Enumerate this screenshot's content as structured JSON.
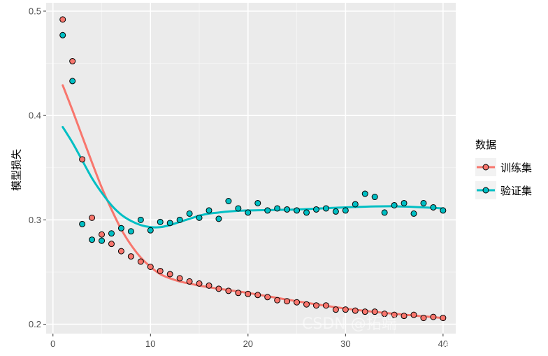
{
  "chart_data": {
    "type": "scatter",
    "title": "",
    "xlabel": "",
    "ylabel": "模型损失",
    "xlim": [
      -0.7,
      41.3
    ],
    "ylim": [
      0.191,
      0.508
    ],
    "xticks": [
      0,
      10,
      20,
      30,
      40
    ],
    "yticks": [
      0.2,
      0.3,
      0.4,
      0.5
    ],
    "x_tick_labels": [
      "0",
      "10",
      "20",
      "30",
      "40"
    ],
    "y_tick_labels": [
      "0.2",
      "0.3",
      "0.4",
      "0.5"
    ],
    "grid": true,
    "legend_title": "数据",
    "legend_position": "right",
    "series": [
      {
        "name": "训练集",
        "color": "#F8766D",
        "x": [
          1,
          2,
          3,
          4,
          5,
          6,
          7,
          8,
          9,
          10,
          11,
          12,
          13,
          14,
          15,
          16,
          17,
          18,
          19,
          20,
          21,
          22,
          23,
          24,
          25,
          26,
          27,
          28,
          29,
          30,
          31,
          32,
          33,
          34,
          35,
          36,
          37,
          38,
          39,
          40
        ],
        "values": [
          0.492,
          0.452,
          0.358,
          0.302,
          0.286,
          0.277,
          0.27,
          0.265,
          0.26,
          0.255,
          0.251,
          0.248,
          0.244,
          0.241,
          0.239,
          0.237,
          0.234,
          0.232,
          0.23,
          0.229,
          0.228,
          0.226,
          0.223,
          0.222,
          0.221,
          0.219,
          0.218,
          0.218,
          0.214,
          0.214,
          0.213,
          0.212,
          0.212,
          0.21,
          0.209,
          0.208,
          0.209,
          0.206,
          0.207,
          0.206
        ],
        "smooth": [
          [
            1,
            0.429
          ],
          [
            2,
            0.405
          ],
          [
            3,
            0.38
          ],
          [
            4,
            0.355
          ],
          [
            5,
            0.331
          ],
          [
            6,
            0.31
          ],
          [
            7,
            0.291
          ],
          [
            8,
            0.276
          ],
          [
            9,
            0.264
          ],
          [
            10,
            0.255
          ],
          [
            11,
            0.248
          ],
          [
            12,
            0.244
          ],
          [
            13,
            0.241
          ],
          [
            14,
            0.239
          ],
          [
            15,
            0.237
          ],
          [
            17,
            0.234
          ],
          [
            20,
            0.23
          ],
          [
            25,
            0.222
          ],
          [
            30,
            0.215
          ],
          [
            35,
            0.21
          ],
          [
            40,
            0.206
          ]
        ]
      },
      {
        "name": "验证集",
        "color": "#00BFC4",
        "x": [
          1,
          2,
          3,
          4,
          5,
          6,
          7,
          8,
          9,
          10,
          11,
          12,
          13,
          14,
          15,
          16,
          17,
          18,
          19,
          20,
          21,
          22,
          23,
          24,
          25,
          26,
          27,
          28,
          29,
          30,
          31,
          32,
          33,
          34,
          35,
          36,
          37,
          38,
          39,
          40
        ],
        "values": [
          0.477,
          0.433,
          0.296,
          0.281,
          0.28,
          0.287,
          0.292,
          0.289,
          0.3,
          0.29,
          0.298,
          0.297,
          0.3,
          0.306,
          0.302,
          0.309,
          0.301,
          0.318,
          0.311,
          0.307,
          0.316,
          0.309,
          0.311,
          0.31,
          0.309,
          0.307,
          0.31,
          0.311,
          0.308,
          0.309,
          0.315,
          0.325,
          0.322,
          0.307,
          0.314,
          0.316,
          0.306,
          0.316,
          0.312,
          0.309
        ],
        "smooth": [
          [
            1,
            0.389
          ],
          [
            2,
            0.374
          ],
          [
            3,
            0.357
          ],
          [
            4,
            0.34
          ],
          [
            5,
            0.326
          ],
          [
            6,
            0.314
          ],
          [
            7,
            0.305
          ],
          [
            8,
            0.299
          ],
          [
            9,
            0.295
          ],
          [
            10,
            0.293
          ],
          [
            11,
            0.293
          ],
          [
            12,
            0.295
          ],
          [
            13,
            0.298
          ],
          [
            14,
            0.301
          ],
          [
            15,
            0.304
          ],
          [
            16,
            0.306
          ],
          [
            17,
            0.307
          ],
          [
            18,
            0.308
          ],
          [
            20,
            0.309
          ],
          [
            25,
            0.31
          ],
          [
            30,
            0.312
          ],
          [
            35,
            0.313
          ],
          [
            40,
            0.311
          ]
        ]
      }
    ]
  },
  "watermark": {
    "csdn_text": "CSDN @拓端",
    "site_text": "@稀土掘金技术社区"
  }
}
